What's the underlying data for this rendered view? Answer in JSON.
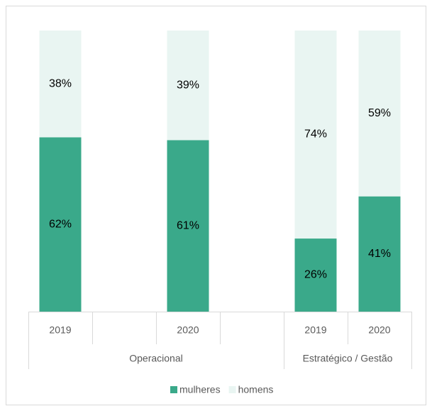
{
  "chart_data": {
    "type": "stacked_bar",
    "categories": [
      "2019",
      null,
      "2020",
      null,
      "2019",
      "2020"
    ],
    "groups": [
      {
        "name": "Operacional",
        "count": 4
      },
      {
        "name": "Estratégico / Gestão",
        "count": 2
      }
    ],
    "series": [
      {
        "name": "mulheres",
        "color": "#3aa98a",
        "values": [
          62,
          null,
          61,
          null,
          26,
          41
        ],
        "value_labels": [
          "62%",
          null,
          "61%",
          null,
          "26%",
          "41%"
        ]
      },
      {
        "name": "homens",
        "color": "#e9f5f2",
        "values": [
          38,
          null,
          39,
          null,
          74,
          59
        ],
        "value_labels": [
          "38%",
          null,
          "39%",
          null,
          "74%",
          "59%"
        ]
      }
    ],
    "ylim": [
      0,
      100
    ],
    "legend": "bottom"
  }
}
